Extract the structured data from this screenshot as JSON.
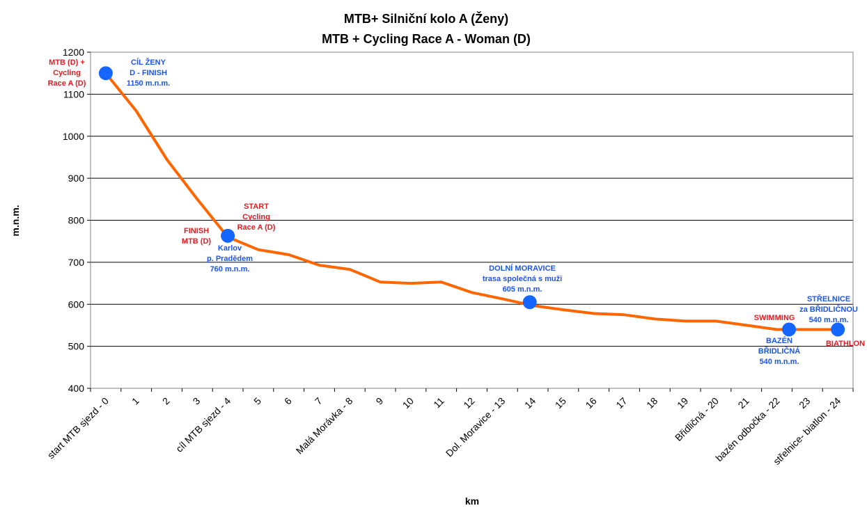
{
  "chart_data": {
    "type": "line",
    "title": "MTB+ Silniční kolo A (Ženy)",
    "subtitle": "MTB + Cycling Race A - Woman (D)",
    "xlabel": "km",
    "ylabel": "m.n.m.",
    "ylim": [
      400,
      1200
    ],
    "yticks": [
      400,
      500,
      600,
      700,
      800,
      900,
      1000,
      1100,
      1200
    ],
    "grid": true,
    "legend": "none",
    "x_categories": [
      "start MTB sjezd - 0",
      "1",
      "2",
      "3",
      "cíl MTB sjezd - 4",
      "5",
      "6",
      "7",
      "Malá Morávka - 8",
      "9",
      "10",
      "11",
      "12",
      "Dol. Moravice - 13",
      "14",
      "15",
      "16",
      "17",
      "18",
      "19",
      "Břidličná - 20",
      "21",
      "bazén odbočka - 22",
      "23",
      "střelnice- biatlon - 24"
    ],
    "series": [
      {
        "color": "#ff6600",
        "x": [
          0,
          1,
          2,
          3,
          4,
          5,
          6,
          7,
          8,
          9,
          10,
          11,
          12,
          13,
          14,
          15,
          16,
          17,
          18,
          19,
          20,
          21,
          22,
          23,
          24
        ],
        "y": [
          1150,
          1060,
          945,
          850,
          760,
          730,
          718,
          693,
          683,
          653,
          650,
          653,
          628,
          613,
          597,
          587,
          578,
          575,
          565,
          560,
          560,
          550,
          540,
          540,
          540
        ]
      }
    ],
    "markers": [
      {
        "x": 0,
        "y": 1150,
        "color": "#1565ff"
      },
      {
        "x": 4,
        "y": 763,
        "color": "#1565ff"
      },
      {
        "x": 13.9,
        "y": 605,
        "color": "#1565ff"
      },
      {
        "x": 22.4,
        "y": 540,
        "color": "#1565ff"
      },
      {
        "x": 24,
        "y": 540,
        "color": "#1565ff"
      }
    ],
    "annotations": [
      {
        "lines": [
          "MTB (D) +",
          "Cycling",
          "Race A (D)"
        ],
        "color": "#e31b23"
      },
      {
        "lines": [
          "CÍL ŽENY",
          "D - FINISH",
          "1150 m.n.m."
        ],
        "color": "#1d55e8"
      },
      {
        "lines": [
          "FINISH",
          "MTB (D)"
        ],
        "color": "#e31b23"
      },
      {
        "lines": [
          "START",
          "Cycling",
          "Race A (D)"
        ],
        "color": "#e31b23"
      },
      {
        "lines": [
          "Karlov",
          "p. Pradědem",
          "760 m.n.m."
        ],
        "color": "#1d55e8"
      },
      {
        "lines": [
          "DOLNÍ MORAVICE",
          "trasa společná s muži",
          "605 m.n.m."
        ],
        "color": "#1d55e8"
      },
      {
        "lines": [
          "SWIMMING"
        ],
        "color": "#e31b23"
      },
      {
        "lines": [
          "BAZÉN",
          "BŘIDLIČNÁ",
          "540 m.n.m."
        ],
        "color": "#1d55e8"
      },
      {
        "lines": [
          "STŘELNICE",
          "za BŘIDLIČNOU",
          "540 m.n.m."
        ],
        "color": "#1d55e8"
      },
      {
        "lines": [
          "BIATHLON"
        ],
        "color": "#e31b23"
      }
    ]
  }
}
